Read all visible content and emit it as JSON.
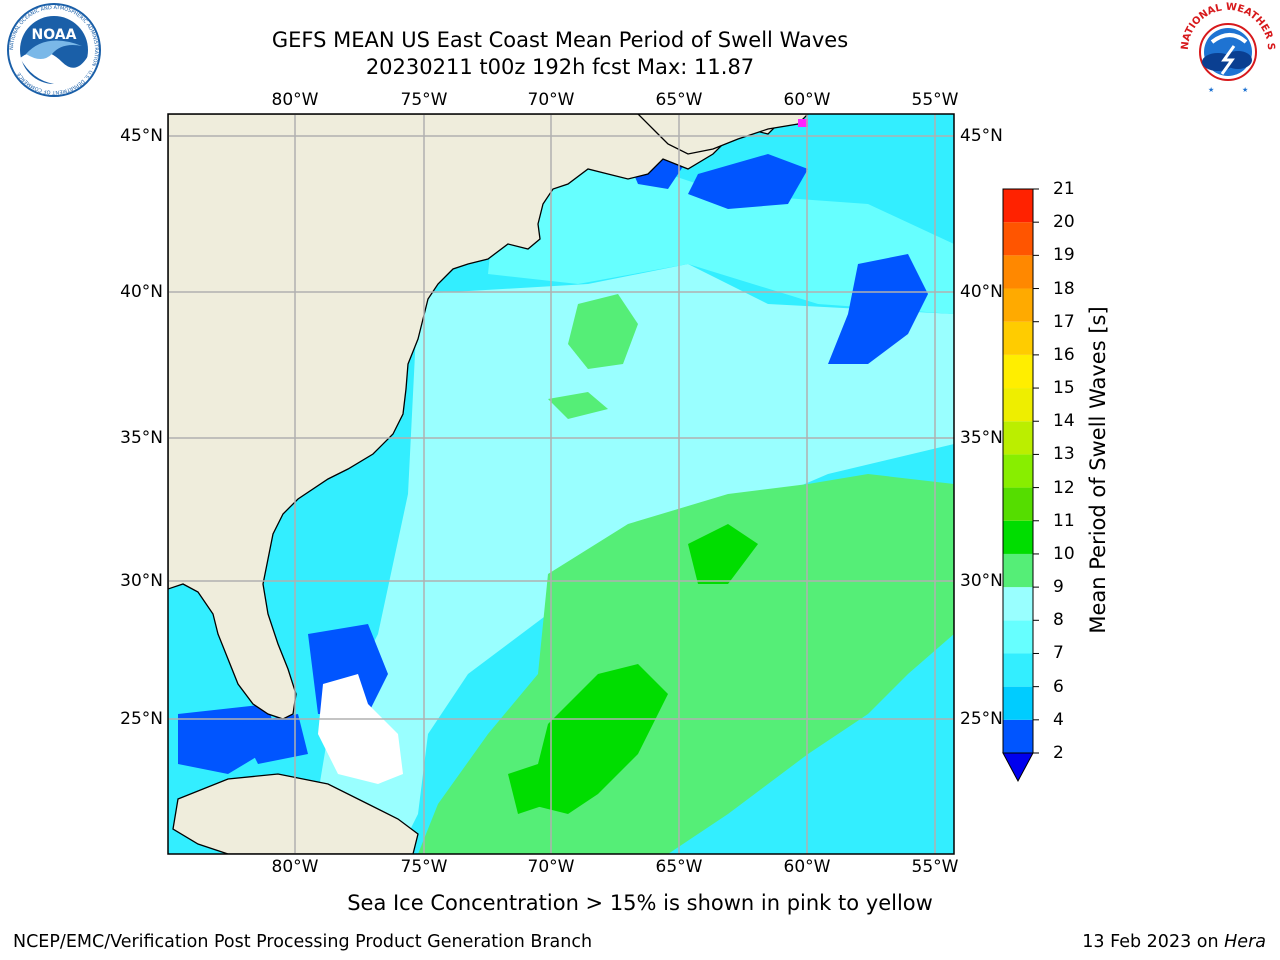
{
  "header": {
    "title_line1": "GEFS MEAN US East Coast Mean Period of Swell Waves",
    "title_line2": "20230211 t00z 192h fcst   Max: 11.87"
  },
  "logos": {
    "noaa": {
      "text": "NOAA",
      "ring_text": "NATIONAL OCEANIC AND ATMOSPHERIC ADMINISTRATION · U.S. DEPARTMENT OF COMMERCE",
      "color": "#1a5fa8"
    },
    "nws": {
      "ring_text": "NATIONAL WEATHER SERVICE",
      "color": "#d7191c"
    }
  },
  "map": {
    "land_color": "#efeddc",
    "grid_color": "#b0b0b0",
    "lon_labels": [
      "80°W",
      "75°W",
      "70°W",
      "65°W",
      "60°W",
      "55°W"
    ],
    "lat_labels": [
      "45°N",
      "40°N",
      "35°N",
      "30°N",
      "25°N"
    ]
  },
  "colorbar": {
    "title": "Mean Period of Swell Waves [s]",
    "levels": [
      "2",
      "4",
      "6",
      "7",
      "8",
      "9",
      "10",
      "11",
      "12",
      "13",
      "14",
      "15",
      "16",
      "17",
      "18",
      "19",
      "20",
      "21"
    ],
    "colors": [
      "#0055ff",
      "#00ccff",
      "#33eeff",
      "#66ffff",
      "#99ffff",
      "#55ee77",
      "#00dd00",
      "#55dd00",
      "#88ee00",
      "#bbee00",
      "#eeee00",
      "#ffee00",
      "#ffcc00",
      "#ffaa00",
      "#ff8800",
      "#ff5500",
      "#ff2200",
      "#ff0000"
    ],
    "extend_color": "#0000ee"
  },
  "caption": "Sea Ice Concentration > 15% is shown in pink to yellow",
  "footer": {
    "left": "NCEP/EMC/Verification Post Processing Product Generation Branch",
    "right_date": "13 Feb 2023 on ",
    "right_machine": "Hera"
  }
}
